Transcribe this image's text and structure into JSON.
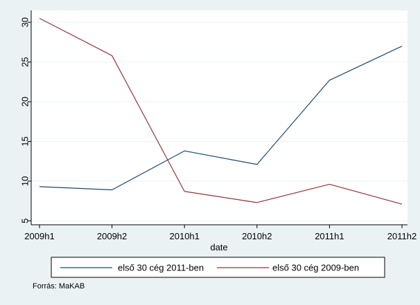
{
  "chart_data": {
    "type": "line",
    "categories": [
      "2009h1",
      "2009h2",
      "2010h1",
      "2010h2",
      "2011h1",
      "2011h2"
    ],
    "series": [
      {
        "name": "első 30 cég 2011-ben",
        "values": [
          9.3,
          8.9,
          13.8,
          12.1,
          22.7,
          27.0
        ],
        "color": "#1a476f"
      },
      {
        "name": "első 30 cég 2009-ben",
        "values": [
          30.5,
          25.8,
          8.7,
          7.3,
          9.6,
          7.1
        ],
        "color": "#90353b"
      }
    ],
    "xlabel": "date",
    "ylabel": "",
    "yticks": [
      5,
      10,
      15,
      20,
      25,
      30
    ],
    "ylim": [
      4.5,
      31.5
    ],
    "grid": true,
    "legend_position": "bottom"
  },
  "note": "Forrás: MaKAB",
  "colors": {
    "background": "#eaf2f3",
    "plot_background": "#ffffff",
    "grid": "#eaf2f3"
  }
}
